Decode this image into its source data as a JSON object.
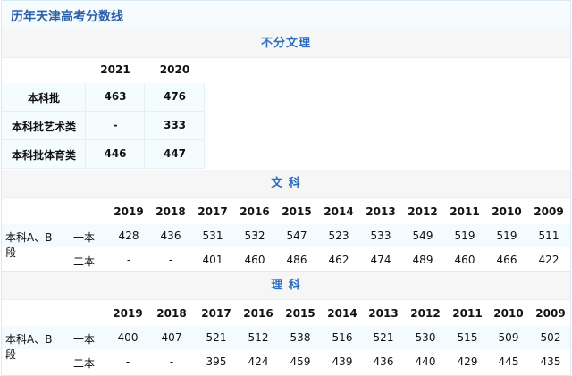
{
  "title": "历年天津高考分数线",
  "combined": {
    "header": "不分文理",
    "years": [
      "2021",
      "2020"
    ],
    "rows": [
      {
        "label": "本科批",
        "values": [
          "463",
          "476"
        ]
      },
      {
        "label": "本科批艺术类",
        "values": [
          "-",
          "333"
        ]
      },
      {
        "label": "本科批体育类",
        "values": [
          "446",
          "447"
        ]
      }
    ]
  },
  "wenke": {
    "header": "文 科",
    "years": [
      "2019",
      "2018",
      "2017",
      "2016",
      "2015",
      "2014",
      "2013",
      "2012",
      "2011",
      "2010",
      "2009"
    ],
    "group_label": "本科A、B段",
    "rows": [
      {
        "label": "一本",
        "values": [
          "428",
          "436",
          "531",
          "532",
          "547",
          "523",
          "533",
          "549",
          "519",
          "519",
          "511"
        ]
      },
      {
        "label": "二本",
        "values": [
          "-",
          "-",
          "401",
          "460",
          "486",
          "462",
          "474",
          "489",
          "460",
          "466",
          "422"
        ]
      }
    ]
  },
  "like": {
    "header": "理 科",
    "years": [
      "2019",
      "2018",
      "2017",
      "2016",
      "2015",
      "2014",
      "2013",
      "2012",
      "2011",
      "2010",
      "2009"
    ],
    "group_label": "本科A、B段",
    "rows": [
      {
        "label": "一本",
        "values": [
          "400",
          "407",
          "521",
          "512",
          "538",
          "516",
          "521",
          "530",
          "515",
          "509",
          "502"
        ]
      },
      {
        "label": "二本",
        "values": [
          "-",
          "-",
          "395",
          "424",
          "459",
          "439",
          "436",
          "440",
          "429",
          "445",
          "435"
        ]
      }
    ]
  }
}
